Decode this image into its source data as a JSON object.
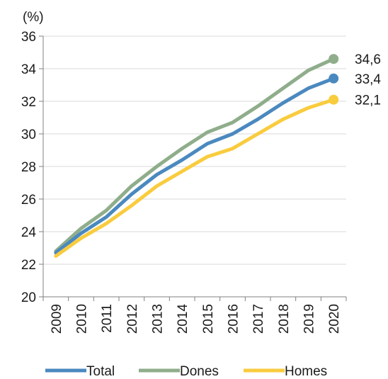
{
  "chart_data": {
    "type": "line",
    "unit_label": "(%)",
    "x": [
      "2009",
      "2010",
      "2011",
      "2012",
      "2013",
      "2014",
      "2015",
      "2016",
      "2017",
      "2018",
      "2019",
      "2020"
    ],
    "ylim": [
      20,
      36
    ],
    "yticks": [
      "20",
      "22",
      "24",
      "26",
      "28",
      "30",
      "32",
      "34",
      "36"
    ],
    "grid": true,
    "legend_position": "bottom",
    "series": [
      {
        "name": "Dones",
        "color": "#8fad8b",
        "values": [
          22.8,
          24.2,
          25.3,
          26.8,
          28.0,
          29.1,
          30.1,
          30.7,
          31.7,
          32.8,
          33.9,
          34.6
        ],
        "end_label": "34,6"
      },
      {
        "name": "Total",
        "color": "#4a89bf",
        "values": [
          22.7,
          23.9,
          24.9,
          26.3,
          27.5,
          28.4,
          29.4,
          30.0,
          30.9,
          31.9,
          32.8,
          33.4
        ],
        "end_label": "33,4"
      },
      {
        "name": "Homes",
        "color": "#f9cc3e",
        "values": [
          22.5,
          23.6,
          24.5,
          25.6,
          26.8,
          27.7,
          28.6,
          29.1,
          30.0,
          30.9,
          31.6,
          32.1
        ],
        "end_label": "32,1"
      }
    ],
    "legend_order": [
      "Total",
      "Dones",
      "Homes"
    ]
  }
}
